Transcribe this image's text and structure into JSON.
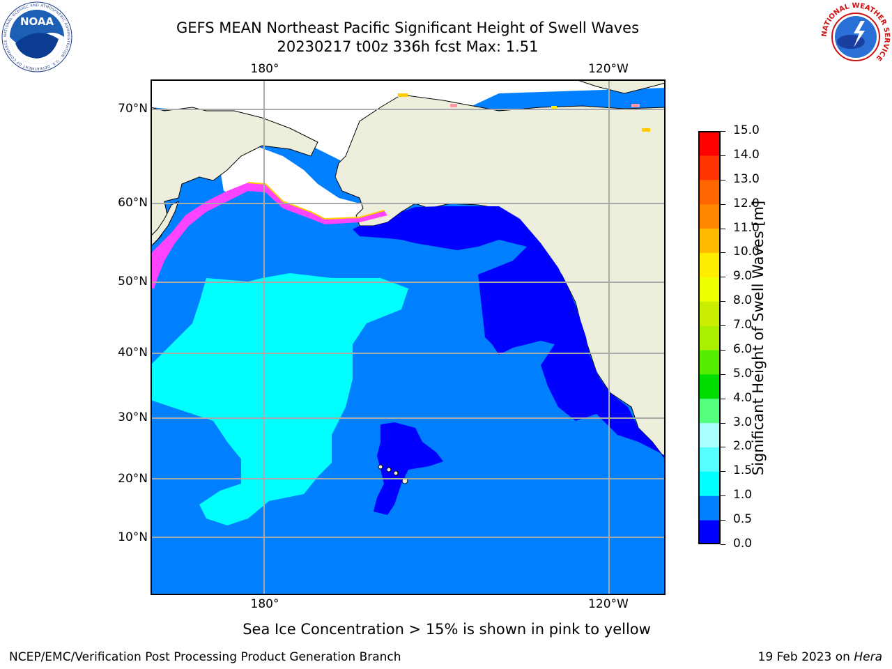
{
  "title_line1": "GEFS MEAN Northeast Pacific Significant Height of Swell Waves",
  "title_line2": "20230217 t00z 336h fcst   Max: 1.51",
  "map": {
    "lon_labels": [
      "180°",
      "120°W"
    ],
    "lat_labels": [
      "70°N",
      "60°N",
      "50°N",
      "40°N",
      "30°N",
      "20°N",
      "10°N"
    ],
    "gridlines": true,
    "land_color": "#eeeedd",
    "ice_colors": [
      "#ff44ff",
      "#ff9999",
      "#ffcc00",
      "#ffff00"
    ]
  },
  "colorbar": {
    "label": "Significant Height of Swell Waves [m]",
    "ticks": [
      "0.0",
      "0.5",
      "1.0",
      "1.5",
      "2.0",
      "3.0",
      "4.0",
      "5.0",
      "6.0",
      "7.0",
      "8.0",
      "9.0",
      "10.0",
      "11.0",
      "12.0",
      "13.0",
      "14.0",
      "15.0"
    ],
    "colors": [
      "#0000ff",
      "#0080ff",
      "#00ffff",
      "#55ffff",
      "#aaffff",
      "#55ff80",
      "#00dd00",
      "#55ee00",
      "#aaee00",
      "#ccee00",
      "#eeff00",
      "#ffee00",
      "#ffbb00",
      "#ff8800",
      "#ff6600",
      "#ff3300",
      "#ff0000"
    ]
  },
  "note": "Sea Ice Concentration > 15% is shown in pink to yellow",
  "footer_left": "NCEP/EMC/Verification Post Processing Product Generation Branch",
  "footer_right_prefix": "19 Feb 2023 on ",
  "footer_right_host": "Hera",
  "logos": {
    "noaa_text": "NOAA",
    "noaa_ring": "NATIONAL OCEANIC AND ATMOSPHERIC ADMINISTRATION · U.S. DEPARTMENT OF COMMERCE",
    "nws_ring": "NATIONAL WEATHER SERVICE"
  }
}
